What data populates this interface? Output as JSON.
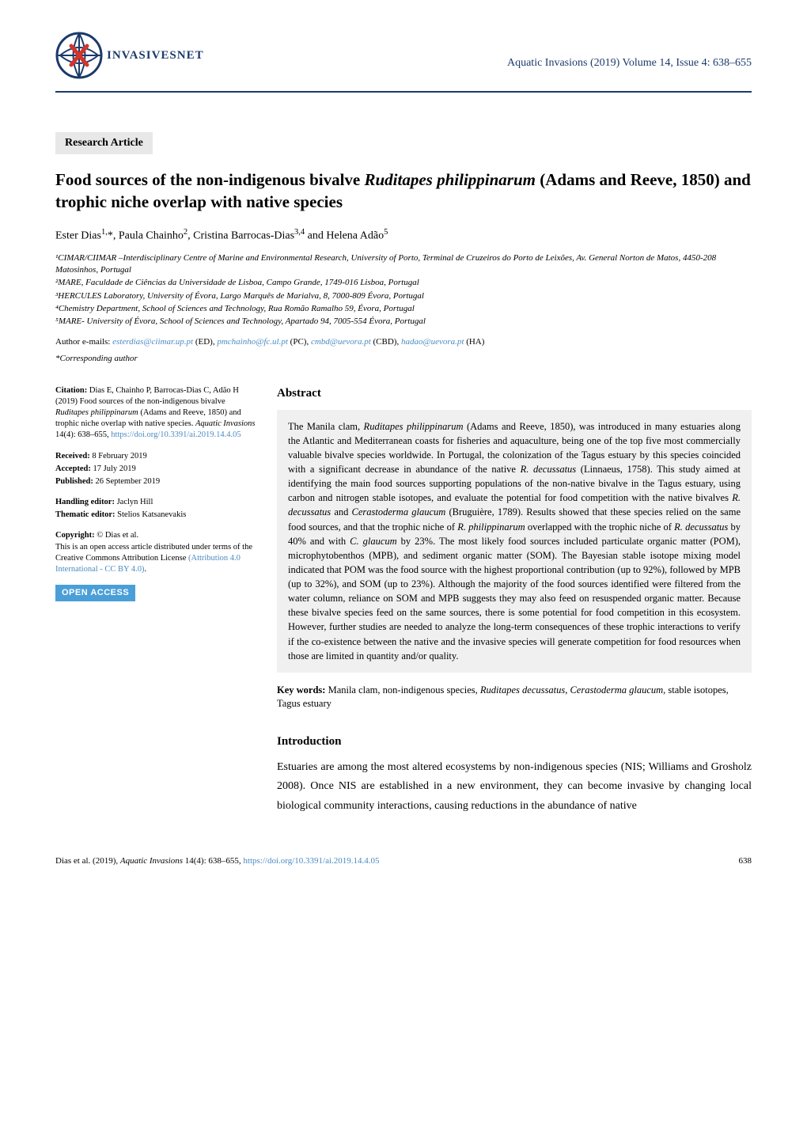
{
  "header": {
    "logo_text": "INVASIVESNET",
    "journal_ref": "Aquatic Invasions (2019) Volume 14, Issue 4: 638–655"
  },
  "article": {
    "type_badge": "Research Article",
    "title_line1": "Food sources of the non-indigenous bivalve ",
    "title_species": "Ruditapes philippinarum",
    "title_line2": " (Adams and Reeve, 1850) and trophic niche overlap with native species",
    "authors_html": "Ester Dias<sup>1,</sup>*, Paula Chainho<sup>2</sup>, Cristina Barrocas-Dias<sup>3,4</sup> and Helena Adão<sup>5</sup>",
    "affiliations": [
      "¹CIMAR/CIIMAR –Interdisciplinary Centre of Marine and Environmental Research, University of Porto, Terminal de Cruzeiros do Porto de Leixões, Av. General Norton de Matos, 4450-208 Matosinhos, Portugal",
      "²MARE, Faculdade de Ciências da Universidade de Lisboa, Campo Grande, 1749-016 Lisboa, Portugal",
      "³HERCULES Laboratory, University of Évora, Largo Marquês de Marialva, 8, 7000-809 Évora, Portugal",
      "⁴Chemistry Department, School of Sciences and Technology, Rua Romão Ramalho 59, Évora, Portugal",
      "⁵MARE- University of Évora, School of Sciences and Technology, Apartado 94, 7005-554 Évora, Portugal"
    ],
    "emails_prefix": "Author e-mails: ",
    "emails": [
      {
        "addr": "esterdias@ciimar.up.pt",
        "initials": " (ED), "
      },
      {
        "addr": "pmchainho@fc.ul.pt",
        "initials": " (PC), "
      },
      {
        "addr": "cmbd@uevora.pt",
        "initials": " (CBD), "
      },
      {
        "addr": "hadao@uevora.pt",
        "initials": " (HA)"
      }
    ],
    "corresponding": "*Corresponding author"
  },
  "sidebar": {
    "citation_label": "Citation:",
    "citation_text1": " Dias E, Chainho P, Barrocas-Dias C, Adão H (2019) Food sources of the non-indigenous bivalve ",
    "citation_species": "Ruditapes philippinarum",
    "citation_text2": " (Adams and Reeve, 1850) and trophic niche overlap with native species. ",
    "citation_journal": "Aquatic Invasions",
    "citation_text3": " 14(4): 638–655, ",
    "doi_url": "https://doi.org/10.3391/ai.2019.14.4.05",
    "received_label": "Received:",
    "received": " 8 February 2019",
    "accepted_label": "Accepted:",
    "accepted": " 17 July 2019",
    "published_label": "Published:",
    "published": " 26 September 2019",
    "handling_label": "Handling editor:",
    "handling": " Jaclyn Hill",
    "thematic_label": "Thematic editor:",
    "thematic": " Stelios Katsanevakis",
    "copyright_label": "Copyright:",
    "copyright_text": " © Dias et al.",
    "license_text": "This is an open access article distributed under terms of the Creative Commons Attribution License ",
    "license_link_text": "(Attribution 4.0 International - CC BY 4.0)",
    "open_access": "OPEN ACCESS"
  },
  "abstract": {
    "heading": "Abstract",
    "text_parts": [
      "The Manila clam",
      ", Ruditapes philippinarum",
      " (Adams and Reeve, 1850), was introduced in many estuaries along the Atlantic and Mediterranean coasts for fisheries and aquaculture, being one of the top five most commercially valuable bivalve species worldwide. In Portugal, the colonization of the Tagus estuary by this species coincided with a significant decrease in abundance of the native ",
      "R. decussatus",
      " (Linnaeus, 1758). This study aimed at identifying the main food sources supporting populations of the non-native bivalve in the Tagus estuary, using carbon and nitrogen stable isotopes, and evaluate the potential for food competition with the native bivalves ",
      "R. decussatus",
      " and ",
      "Cerastoderma glaucum",
      " (Bruguière, 1789). Results showed that these species relied on the same food sources, and that the trophic niche of ",
      "R. philippinarum",
      " overlapped with the trophic niche of ",
      "R. decussatus",
      " by 40% and with ",
      "C. glaucum",
      " by 23%. The most likely food sources included particulate organic matter (POM), microphytobenthos (MPB), and sediment organic matter (SOM). The Bayesian stable isotope mixing model indicated that POM was the food source with the highest proportional contribution (up to 92%), followed by MPB (up to 32%), and SOM (up to 23%). Although the majority of the food sources identified were filtered from the water column, reliance on SOM and MPB suggests they may also feed on resuspended organic matter. Because these bivalve species feed on the same sources, there is some potential for food competition in this ecosystem. However, further studies are needed to analyze the long-term consequences of these trophic interactions to verify if the co-existence between the native and the invasive species will generate competition for food resources when those are limited in quantity and/or quality."
    ]
  },
  "keywords": {
    "label": "Key words:",
    "text1": " Manila clam, non-indigenous species, ",
    "species1": "Ruditapes decussatus",
    "text2": ", ",
    "species2": "Cerastoderma glaucum",
    "text3": ", stable isotopes, Tagus estuary"
  },
  "intro": {
    "heading": "Introduction",
    "text": "Estuaries are among the most altered ecosystems by non-indigenous species (NIS; Williams and Grosholz 2008). Once NIS are established in a new environment, they can become invasive by changing local biological community interactions, causing reductions in the abundance of native"
  },
  "footer": {
    "left_prefix": "Dias et al. (2019), ",
    "left_journal": "Aquatic Invasions",
    "left_ref": " 14(4): 638–655, ",
    "left_doi": "https://doi.org/10.3391/ai.2019.14.4.05",
    "page_num": "638"
  },
  "colors": {
    "brand_blue": "#1b3a6b",
    "link_blue": "#4a8bc2",
    "open_access_bg": "#4a9fd8",
    "badge_bg": "#e8e8e8",
    "abstract_bg": "#f0f0f0"
  }
}
